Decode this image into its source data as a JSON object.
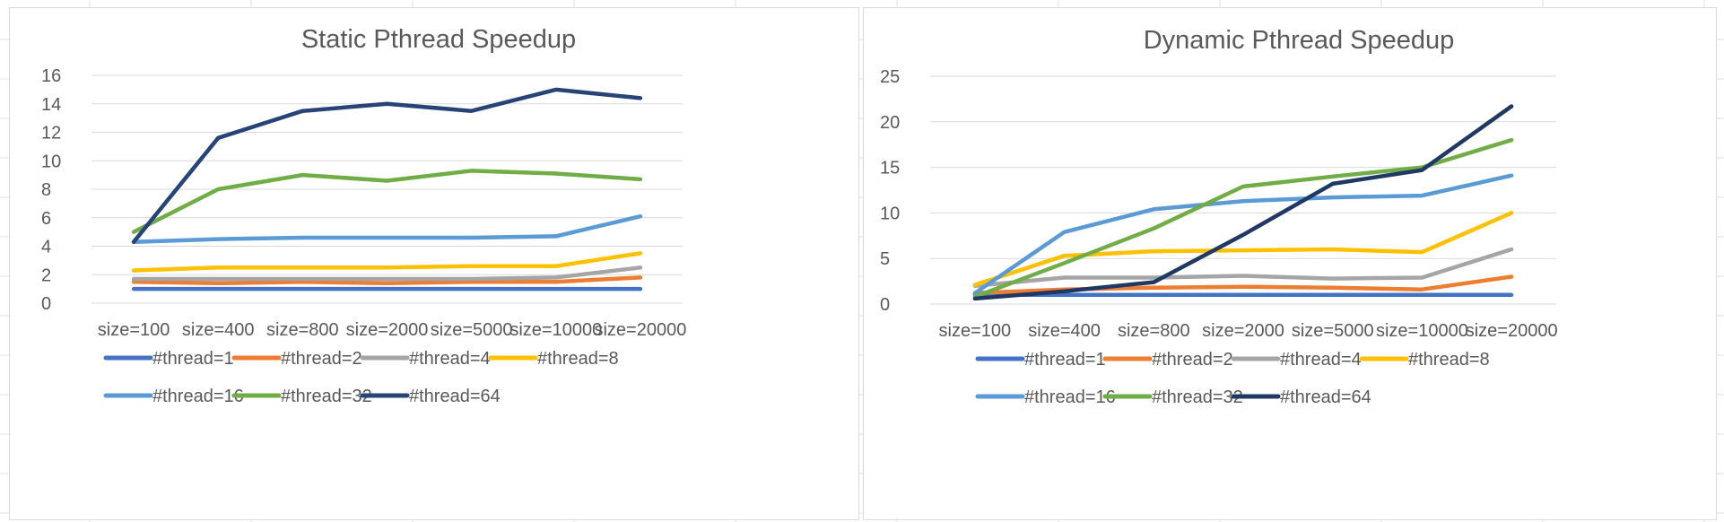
{
  "chart_data": [
    {
      "type": "line",
      "title": "Static Pthread Speedup",
      "xlabel": "",
      "ylabel": "",
      "categories": [
        "size=100",
        "size=400",
        "size=800",
        "size=2000",
        "size=5000",
        "size=10000",
        "size=20000"
      ],
      "y_ticks": [
        "0",
        "2",
        "4",
        "6",
        "8",
        "10",
        "12",
        "14",
        "16"
      ],
      "ylim": [
        0,
        16
      ],
      "grid": true,
      "legend_position": "bottom",
      "series": [
        {
          "name": "#thread=1",
          "color": "#4472c4",
          "values": [
            1.0,
            1.0,
            1.0,
            1.0,
            1.0,
            1.0,
            1.0
          ]
        },
        {
          "name": "#thread=2",
          "color": "#ed7d31",
          "values": [
            1.5,
            1.4,
            1.5,
            1.4,
            1.5,
            1.5,
            1.8
          ]
        },
        {
          "name": "#thread=4",
          "color": "#a5a5a5",
          "values": [
            1.7,
            1.7,
            1.7,
            1.7,
            1.7,
            1.8,
            2.5
          ]
        },
        {
          "name": "#thread=8",
          "color": "#ffc000",
          "values": [
            2.3,
            2.5,
            2.5,
            2.5,
            2.6,
            2.6,
            3.5
          ]
        },
        {
          "name": "#thread=16",
          "color": "#5b9bd5",
          "values": [
            4.3,
            4.5,
            4.6,
            4.6,
            4.6,
            4.7,
            6.1
          ]
        },
        {
          "name": "#thread=32",
          "color": "#70ad47",
          "values": [
            5.0,
            8.0,
            9.0,
            8.6,
            9.3,
            9.1,
            8.7
          ]
        },
        {
          "name": "#thread=64",
          "color": "#264478",
          "values": [
            4.3,
            11.6,
            13.5,
            14.0,
            13.5,
            15.0,
            14.4
          ]
        }
      ]
    },
    {
      "type": "line",
      "title": "Dynamic Pthread Speedup",
      "xlabel": "",
      "ylabel": "",
      "categories": [
        "size=100",
        "size=400",
        "size=800",
        "size=2000",
        "size=5000",
        "size=10000",
        "size=20000"
      ],
      "y_ticks": [
        "0",
        "5",
        "10",
        "15",
        "20",
        "25"
      ],
      "ylim": [
        0,
        25
      ],
      "grid": true,
      "legend_position": "bottom",
      "series": [
        {
          "name": "#thread=1",
          "color": "#4472c4",
          "values": [
            1.0,
            1.0,
            1.0,
            1.0,
            1.0,
            1.0,
            1.0
          ]
        },
        {
          "name": "#thread=2",
          "color": "#ed7d31",
          "values": [
            1.2,
            1.6,
            1.8,
            1.9,
            1.8,
            1.6,
            3.0
          ]
        },
        {
          "name": "#thread=4",
          "color": "#a5a5a5",
          "values": [
            2.0,
            2.9,
            2.9,
            3.1,
            2.8,
            2.9,
            6.0
          ]
        },
        {
          "name": "#thread=8",
          "color": "#ffc000",
          "values": [
            2.1,
            5.3,
            5.8,
            5.9,
            6.0,
            5.7,
            10.0
          ]
        },
        {
          "name": "#thread=16",
          "color": "#5b9bd5",
          "values": [
            1.2,
            7.9,
            10.4,
            11.3,
            11.7,
            11.9,
            14.1
          ]
        },
        {
          "name": "#thread=32",
          "color": "#70ad47",
          "values": [
            0.8,
            4.5,
            8.3,
            12.9,
            14.0,
            15.0,
            18.0
          ]
        },
        {
          "name": "#thread=64",
          "color": "#203864",
          "values": [
            0.6,
            1.4,
            2.4,
            7.6,
            13.2,
            14.7,
            21.7
          ]
        }
      ]
    }
  ]
}
